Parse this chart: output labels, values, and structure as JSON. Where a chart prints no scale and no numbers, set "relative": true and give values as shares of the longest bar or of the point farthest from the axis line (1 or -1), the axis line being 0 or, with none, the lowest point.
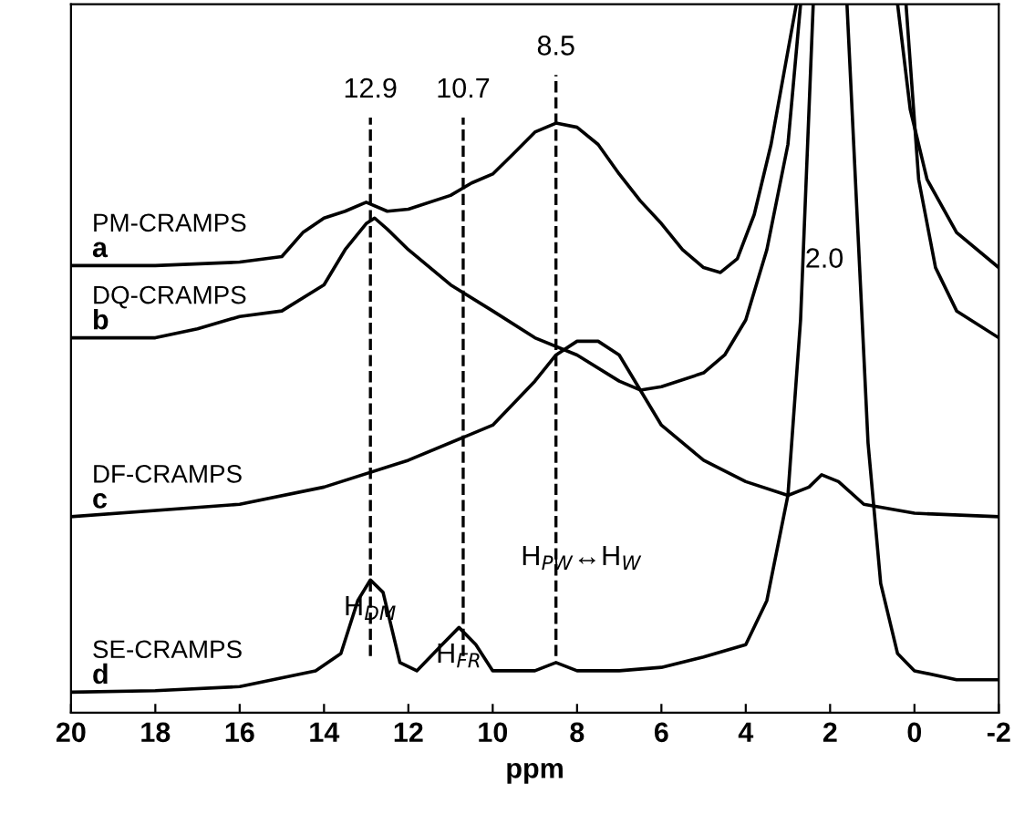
{
  "chart_data": {
    "type": "line",
    "xlabel": "ppm",
    "relative": true,
    "xlim": [
      20,
      -2
    ],
    "xticks": [
      20,
      18,
      16,
      14,
      12,
      10,
      8,
      6,
      4,
      2,
      0,
      -2
    ],
    "legend": false,
    "grid": false,
    "line_style": "solid",
    "marker": "none",
    "series": [
      {
        "name": "PM-CRAMPS",
        "color": "#000000",
        "x": [
          20,
          18,
          16,
          15,
          14.5,
          14,
          13.5,
          13,
          12.5,
          12,
          11,
          10.5,
          10,
          9.5,
          9,
          8.5,
          8,
          7.5,
          7,
          6.5,
          6,
          5.5,
          5,
          4.6,
          4.2,
          3.8,
          3.4,
          3.1,
          2.8,
          null,
          0.4,
          0.1,
          -0.3,
          -1,
          -2
        ],
        "values": [
          0.62,
          0.62,
          0.625,
          0.633,
          0.668,
          0.689,
          0.699,
          0.712,
          0.699,
          0.702,
          0.722,
          0.74,
          0.753,
          0.783,
          0.814,
          0.827,
          0.821,
          0.796,
          0.753,
          0.714,
          0.681,
          0.643,
          0.617,
          0.61,
          0.63,
          0.694,
          0.796,
          0.898,
          1,
          null,
          1,
          0.847,
          0.745,
          0.668,
          0.617
        ]
      },
      {
        "name": "DQ-CRAMPS",
        "color": "#000000",
        "x": [
          20,
          18,
          17,
          16,
          15,
          14,
          13.5,
          13,
          12.8,
          12.5,
          12,
          11,
          10,
          9,
          8,
          7,
          6.5,
          6,
          5,
          4.5,
          4,
          3.5,
          3,
          2.7,
          null,
          0.2,
          -0.1,
          -0.5,
          -1,
          -2
        ],
        "values": [
          0.515,
          0.515,
          0.528,
          0.546,
          0.554,
          0.592,
          0.643,
          0.681,
          0.689,
          0.673,
          0.643,
          0.592,
          0.554,
          0.515,
          0.49,
          0.452,
          0.439,
          0.444,
          0.464,
          0.49,
          0.541,
          0.643,
          0.796,
          1,
          null,
          1,
          0.745,
          0.617,
          0.554,
          0.515
        ]
      },
      {
        "name": "DF-CRAMPS",
        "color": "#000000",
        "x": [
          20,
          16,
          14,
          12,
          10,
          9,
          8.5,
          8,
          7.5,
          7,
          6.5,
          6,
          5,
          4,
          3,
          2.5,
          2.2,
          1.8,
          1.2,
          0,
          -2
        ],
        "values": [
          0.255,
          0.273,
          0.298,
          0.337,
          0.388,
          0.452,
          0.49,
          0.51,
          0.51,
          0.49,
          0.439,
          0.388,
          0.337,
          0.306,
          0.286,
          0.298,
          0.316,
          0.306,
          0.273,
          0.26,
          0.255
        ]
      },
      {
        "name": "SE-CRAMPS",
        "color": "#000000",
        "x": [
          20,
          18,
          16,
          14.2,
          13.6,
          13.2,
          12.9,
          12.6,
          12.2,
          11.8,
          11.2,
          10.8,
          10.4,
          10,
          9,
          8.5,
          8,
          7,
          6,
          5,
          4,
          3.5,
          3,
          2.7,
          2.5,
          2.4,
          null,
          1.6,
          1.4,
          1.1,
          0.8,
          0.4,
          0,
          -1,
          -2
        ],
        "values": [
          0,
          0.002,
          0.008,
          0.031,
          0.056,
          0.133,
          0.163,
          0.145,
          0.043,
          0.031,
          0.069,
          0.094,
          0.069,
          0.031,
          0.031,
          0.043,
          0.031,
          0.031,
          0.036,
          0.051,
          0.069,
          0.133,
          0.286,
          0.541,
          0.847,
          1,
          null,
          1,
          0.745,
          0.362,
          0.158,
          0.056,
          0.031,
          0.018,
          0.018
        ]
      }
    ],
    "annotations": [
      "a",
      "b",
      "c",
      "d",
      "2.0",
      "H$_{PW}$↔H$_{W}$",
      {
        "text": "H$_{DM}$",
        "x": 12.9,
        "y": 0.163
      },
      {
        "text": "H$_{FR}$",
        "x": 10.8,
        "y": 0.094
      }
    ],
    "ref_lines": [
      {
        "axis": "x",
        "value": 12.9,
        "label": "12.9",
        "line_style": "dashed",
        "color": "#000000"
      },
      {
        "axis": "x",
        "value": 10.7,
        "label": "10.7",
        "line_style": "dashed",
        "color": "#000000"
      },
      {
        "axis": "x",
        "value": 8.5,
        "label": "8.5",
        "line_style": "dashed",
        "color": "#000000"
      }
    ]
  }
}
